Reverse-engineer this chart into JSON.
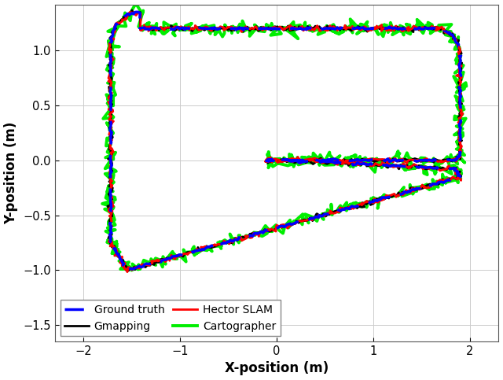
{
  "title": "",
  "xlabel": "X-position (m)",
  "ylabel": "Y-position (m)",
  "xlim": [
    -2.3,
    2.3
  ],
  "ylim": [
    -1.65,
    1.42
  ],
  "xticks": [
    -2,
    -1,
    0,
    1,
    2
  ],
  "yticks": [
    -1.5,
    -1.0,
    -0.5,
    0.0,
    0.5,
    1.0
  ],
  "background_color": "#FFFFFF"
}
